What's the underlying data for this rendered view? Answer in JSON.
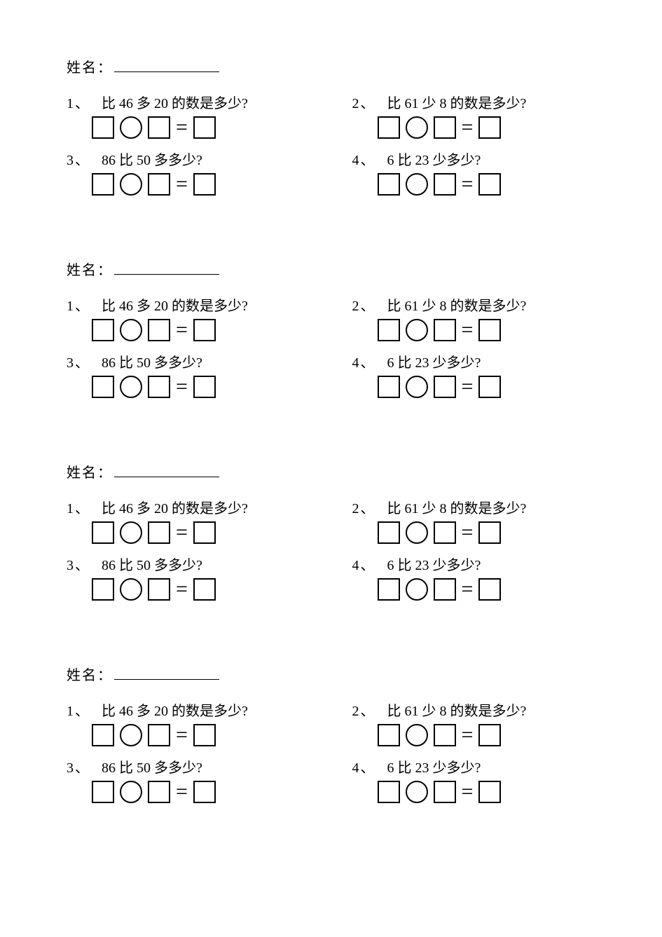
{
  "name_label": "姓名：",
  "questions": [
    {
      "num": "1",
      "sep": "、",
      "parts": [
        "比 ",
        "46",
        " 多 ",
        "20",
        " 的数是多少?"
      ]
    },
    {
      "num": "2",
      "sep": "、",
      "parts": [
        "比 ",
        "61",
        " 少 ",
        "8",
        " 的数是多少?"
      ]
    },
    {
      "num": "3",
      "sep": "、",
      "parts": [
        "86",
        " 比 ",
        "50",
        " 多多少?"
      ]
    },
    {
      "num": "4",
      "sep": "、",
      "parts": [
        "6",
        " 比 ",
        "23",
        " 少多少?"
      ]
    }
  ],
  "equals_sign": "=",
  "shape_style": {
    "square_size": 32,
    "circle_size": 32,
    "stroke": "#000000",
    "stroke_width": 2,
    "fill": "#ffffff"
  },
  "section_count": 4
}
